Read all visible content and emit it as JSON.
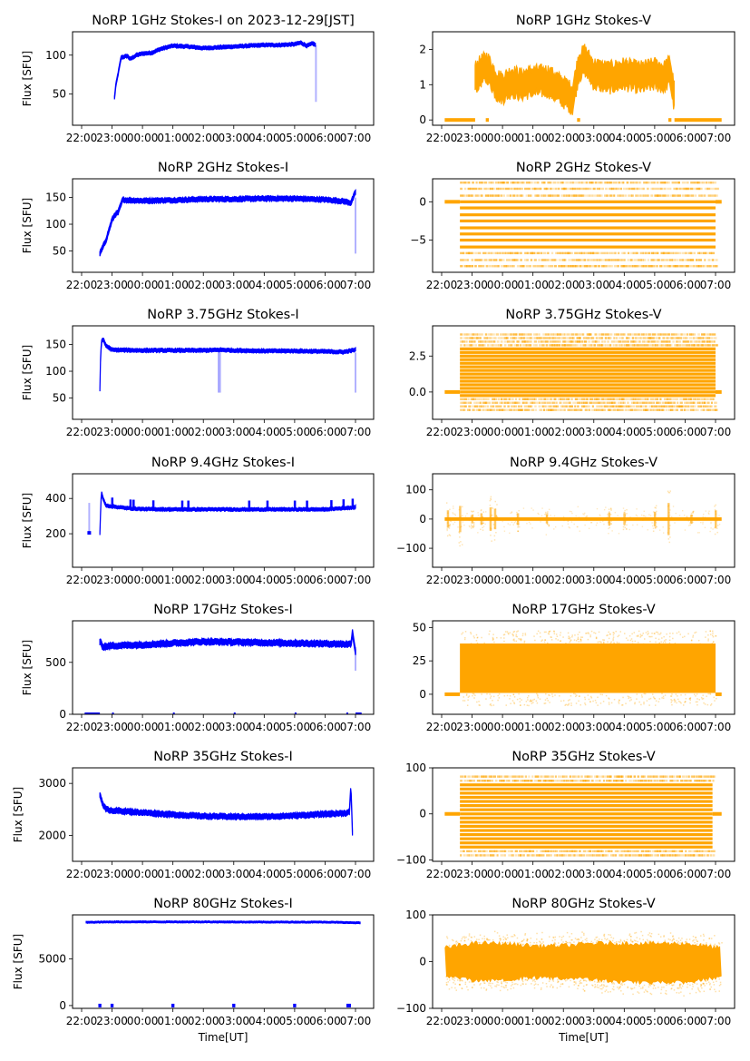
{
  "figure": {
    "xlabel": "Time[UT]",
    "ylabel": "Flux [SFU]",
    "x_ticks": [
      "22:00",
      "23:00",
      "00:00",
      "01:00",
      "02:00",
      "03:00",
      "04:00",
      "05:00",
      "06:00",
      "07:00"
    ],
    "colors": {
      "stokes_i": "#0000ff",
      "stokes_v": "#ffa500"
    }
  },
  "chart_data": [
    {
      "type": "scatter",
      "id": "1ghz-i",
      "title": "NoRP 1GHz Stokes-I on 2023-12-29[JST]",
      "xlabel": "",
      "ylabel": "Flux [SFU]",
      "color": "#0000ff",
      "xlim_hours": [
        21.7,
        31.5
      ],
      "ylim": [
        10,
        130
      ],
      "yticks": [
        50,
        100
      ],
      "ytick_labels": [
        "50",
        "100"
      ],
      "series": [
        {
          "name": "Stokes-I",
          "x_hours": [
            23.08,
            23.12,
            23.3,
            23.5,
            23.6,
            23.8,
            24.0,
            24.3,
            24.6,
            25.0,
            25.5,
            26.0,
            26.5,
            27.0,
            27.5,
            28.0,
            28.5,
            29.0,
            29.2,
            29.4,
            29.6,
            29.68
          ],
          "values": [
            45,
            60,
            97,
            99,
            95,
            100,
            102,
            103,
            108,
            112,
            111,
            109,
            110,
            111,
            112,
            113,
            113,
            114,
            116,
            112,
            115,
            113
          ],
          "band_halfwidth": 2,
          "dropouts": [
            {
              "x": 29.7,
              "low": 40,
              "high": 113
            }
          ]
        }
      ]
    },
    {
      "type": "scatter",
      "id": "1ghz-v",
      "title": "NoRP 1GHz Stokes-V",
      "xlabel": "",
      "ylabel": "",
      "color": "#ffa500",
      "xlim_hours": [
        21.7,
        31.5
      ],
      "ylim": [
        -0.15,
        2.5
      ],
      "yticks": [
        0,
        1,
        2
      ],
      "ytick_labels": [
        "0",
        "1",
        "2"
      ],
      "series": [
        {
          "name": "Stokes-V",
          "x_hours": [
            23.1,
            23.3,
            23.5,
            23.8,
            24.0,
            24.3,
            24.6,
            25.0,
            25.5,
            26.0,
            26.3,
            26.5,
            26.7,
            27.0,
            27.5,
            28.0,
            28.5,
            29.0,
            29.3,
            29.5,
            29.65
          ],
          "values": [
            1.2,
            1.4,
            1.5,
            1.0,
            0.9,
            1.1,
            1.0,
            1.1,
            1.1,
            0.8,
            0.6,
            1.5,
            1.7,
            1.3,
            1.2,
            1.3,
            1.2,
            1.3,
            1.2,
            1.4,
            0.6
          ],
          "band_halfwidth": 0.35,
          "zero_segments": [
            [
              22.1,
              23.1
            ],
            [
              23.45,
              23.55
            ],
            [
              26.45,
              26.55
            ],
            [
              29.45,
              29.55
            ],
            [
              29.65,
              31.2
            ]
          ]
        }
      ]
    },
    {
      "type": "scatter",
      "id": "2ghz-i",
      "title": "NoRP 2GHz Stokes-I",
      "xlabel": "",
      "ylabel": "Flux [SFU]",
      "color": "#0000ff",
      "xlim_hours": [
        21.7,
        31.5
      ],
      "ylim": [
        10,
        185
      ],
      "yticks": [
        50,
        100,
        150
      ],
      "ytick_labels": [
        "50",
        "100",
        "150"
      ],
      "series": [
        {
          "name": "Stokes-I",
          "x_hours": [
            22.6,
            22.8,
            23.0,
            23.1,
            23.2,
            23.35,
            23.5,
            24.0,
            25.0,
            26.0,
            27.0,
            28.0,
            29.0,
            30.0,
            30.6,
            30.85,
            31.0
          ],
          "values": [
            45,
            70,
            108,
            118,
            122,
            146,
            145,
            144,
            145,
            147,
            147,
            148,
            148,
            146,
            143,
            140,
            160
          ],
          "band_halfwidth": 4,
          "dropouts": [
            {
              "x": 31.0,
              "low": 45,
              "high": 150
            }
          ]
        }
      ]
    },
    {
      "type": "scatter",
      "id": "2ghz-v",
      "title": "NoRP 2GHz Stokes-V",
      "xlabel": "",
      "ylabel": "",
      "color": "#ffa500",
      "xlim_hours": [
        21.7,
        31.5
      ],
      "ylim": [
        -9.2,
        3.0
      ],
      "yticks": [
        -5,
        0
      ],
      "ytick_labels": [
        "−5",
        "0"
      ],
      "series": [
        {
          "name": "Stokes-V",
          "levels": [
            0,
            -0.8,
            -1.7,
            -2.5,
            -3.4,
            -4.2,
            -5.0,
            -5.9
          ],
          "sparse_levels": [
            2.5,
            1.7,
            0.8,
            -6.7,
            -7.6,
            -8.4
          ],
          "x_range": [
            22.6,
            31.0
          ],
          "zero_segments": [
            [
              22.1,
              22.6
            ],
            [
              31.0,
              31.2
            ]
          ]
        }
      ]
    },
    {
      "type": "scatter",
      "id": "375ghz-i",
      "title": "NoRP 3.75GHz Stokes-I",
      "xlabel": "",
      "ylabel": "Flux [SFU]",
      "color": "#0000ff",
      "xlim_hours": [
        21.7,
        31.5
      ],
      "ylim": [
        10,
        185
      ],
      "yticks": [
        50,
        100,
        150
      ],
      "ytick_labels": [
        "50",
        "100",
        "150"
      ],
      "series": [
        {
          "name": "Stokes-I",
          "x_hours": [
            22.6,
            22.62,
            22.65,
            22.7,
            22.8,
            23.0,
            24.0,
            25.0,
            26.0,
            26.6,
            27.0,
            28.0,
            29.0,
            30.0,
            30.6,
            31.0
          ],
          "values": [
            65,
            120,
            155,
            160,
            148,
            140,
            139,
            139,
            139,
            140,
            139,
            138,
            138,
            137,
            136,
            140
          ],
          "band_halfwidth": 3,
          "dropouts": [
            {
              "x": 26.5,
              "low": 60,
              "high": 135
            },
            {
              "x": 26.55,
              "low": 60,
              "high": 135
            },
            {
              "x": 31.0,
              "low": 60,
              "high": 135
            }
          ]
        }
      ]
    },
    {
      "type": "scatter",
      "id": "375ghz-v",
      "title": "NoRP 3.75GHz Stokes-V",
      "xlabel": "",
      "ylabel": "",
      "color": "#ffa500",
      "xlim_hours": [
        21.7,
        31.5
      ],
      "ylim": [
        -1.9,
        4.6
      ],
      "yticks": [
        0.0,
        2.5
      ],
      "ytick_labels": [
        "0.0",
        "2.5"
      ],
      "series": [
        {
          "name": "Stokes-V",
          "levels": [
            0,
            0.25,
            0.5,
            0.75,
            1.0,
            1.25,
            1.5,
            1.75,
            2.0,
            2.25,
            2.5,
            2.75,
            3.0,
            -0.25
          ],
          "sparse_levels": [
            3.25,
            3.5,
            3.75,
            4.0,
            -0.5,
            -0.75,
            -1.0,
            -1.25
          ],
          "x_range": [
            22.6,
            31.0
          ],
          "zero_segments": [
            [
              22.1,
              22.6
            ],
            [
              31.0,
              31.2
            ]
          ]
        }
      ]
    },
    {
      "type": "scatter",
      "id": "94ghz-i",
      "title": "NoRP 9.4GHz Stokes-I",
      "xlabel": "",
      "ylabel": "Flux [SFU]",
      "color": "#0000ff",
      "xlim_hours": [
        21.7,
        31.5
      ],
      "ylim": [
        10,
        540
      ],
      "yticks": [
        200,
        400
      ],
      "ytick_labels": [
        "200",
        "400"
      ],
      "series": [
        {
          "name": "Stokes-I",
          "x_hours": [
            22.6,
            22.62,
            22.65,
            22.7,
            22.8,
            23.0,
            23.5,
            24.0,
            25.0,
            26.0,
            27.0,
            28.0,
            29.0,
            30.0,
            31.0
          ],
          "values": [
            200,
            310,
            440,
            400,
            360,
            355,
            345,
            340,
            338,
            338,
            338,
            338,
            338,
            338,
            350
          ],
          "band_halfwidth": 8,
          "spikes_hours": [
            23.0,
            23.6,
            23.7,
            24.35,
            25.3,
            25.5,
            27.5,
            28.1,
            29.0,
            29.4,
            30.2,
            30.6,
            30.9
          ],
          "early_points": [
            {
              "x": 22.25,
              "low": 195,
              "high": 375
            }
          ]
        }
      ]
    },
    {
      "type": "scatter",
      "id": "94ghz-v",
      "title": "NoRP 9.4GHz Stokes-V",
      "xlabel": "",
      "ylabel": "",
      "color": "#ffa500",
      "xlim_hours": [
        21.7,
        31.5
      ],
      "ylim": [
        -165,
        155
      ],
      "yticks": [
        -100,
        0,
        100
      ],
      "ytick_labels": [
        "−100",
        "0",
        "100"
      ],
      "series": [
        {
          "name": "Stokes-V",
          "x_range": [
            22.1,
            31.2
          ],
          "center": 0,
          "band_halfwidth": 6,
          "spikes_hours": [
            22.2,
            22.6,
            23.0,
            23.3,
            23.6,
            23.75,
            24.5,
            25.45,
            27.5,
            28.0,
            29.0,
            29.45,
            30.2,
            31.0
          ],
          "spike_amplitudes": [
            60,
            90,
            30,
            40,
            80,
            70,
            40,
            30,
            45,
            40,
            50,
            110,
            30,
            60
          ]
        }
      ]
    },
    {
      "type": "scatter",
      "id": "17ghz-i",
      "title": "NoRP 17GHz Stokes-I",
      "xlabel": "",
      "ylabel": "Flux [SFU]",
      "color": "#0000ff",
      "xlim_hours": [
        21.7,
        31.5
      ],
      "ylim": [
        0,
        900
      ],
      "yticks": [
        0,
        500
      ],
      "ytick_labels": [
        "0",
        "500"
      ],
      "series": [
        {
          "name": "Stokes-I",
          "x_hours": [
            22.6,
            22.7,
            23.0,
            24.0,
            25.0,
            26.0,
            27.0,
            28.0,
            29.0,
            30.0,
            30.85,
            30.9,
            31.0
          ],
          "values": [
            700,
            650,
            660,
            670,
            685,
            700,
            695,
            690,
            685,
            680,
            675,
            790,
            600
          ],
          "band_halfwidth": 25,
          "dropouts": [
            {
              "x": 31.0,
              "low": 420,
              "high": 650
            }
          ],
          "zero_segments": [
            [
              22.1,
              22.6
            ],
            [
              23.0,
              23.02
            ],
            [
              25.0,
              25.03
            ],
            [
              27.0,
              27.03
            ],
            [
              29.0,
              29.03
            ],
            [
              30.7,
              30.75
            ],
            [
              31.0,
              31.2
            ]
          ]
        }
      ]
    },
    {
      "type": "scatter",
      "id": "17ghz-v",
      "title": "NoRP 17GHz Stokes-V",
      "xlabel": "",
      "ylabel": "",
      "color": "#ffa500",
      "xlim_hours": [
        21.7,
        31.5
      ],
      "ylim": [
        -15,
        55
      ],
      "yticks": [
        0,
        25,
        50
      ],
      "ytick_labels": [
        "0",
        "25",
        "50"
      ],
      "series": [
        {
          "name": "Stokes-V",
          "x_range": [
            22.6,
            31.0
          ],
          "low": 1,
          "high": 38,
          "scatter_low": -8,
          "scatter_high": 48,
          "zero_segments": [
            [
              22.1,
              22.6
            ],
            [
              31.0,
              31.2
            ]
          ]
        }
      ]
    },
    {
      "type": "scatter",
      "id": "35ghz-i",
      "title": "NoRP 35GHz Stokes-I",
      "xlabel": "",
      "ylabel": "Flux [SFU]",
      "color": "#0000ff",
      "xlim_hours": [
        21.7,
        31.5
      ],
      "ylim": [
        1500,
        3300
      ],
      "yticks": [
        2000,
        3000
      ],
      "ytick_labels": [
        "2000",
        "3000"
      ],
      "series": [
        {
          "name": "Stokes-I",
          "x_hours": [
            22.6,
            22.7,
            22.8,
            23.0,
            24.0,
            25.0,
            26.0,
            27.0,
            28.0,
            29.0,
            30.0,
            30.7,
            30.8,
            30.85,
            30.9
          ],
          "values": [
            2780,
            2600,
            2500,
            2480,
            2440,
            2400,
            2370,
            2360,
            2360,
            2380,
            2410,
            2430,
            2450,
            2950,
            2050
          ],
          "band_halfwidth": 45
        }
      ]
    },
    {
      "type": "scatter",
      "id": "35ghz-v",
      "title": "NoRP 35GHz Stokes-V",
      "xlabel": "",
      "ylabel": "",
      "color": "#ffa500",
      "xlim_hours": [
        21.7,
        31.5
      ],
      "ylim": [
        -103,
        100
      ],
      "yticks": [
        -100,
        0,
        100
      ],
      "ytick_labels": [
        "−100",
        "0",
        "100"
      ],
      "series": [
        {
          "name": "Stokes-V",
          "levels": [
            0,
            9,
            18,
            27,
            36,
            45,
            54,
            63,
            -9,
            -18,
            -27,
            -36,
            -45,
            -54,
            -63,
            -72
          ],
          "sparse_levels": [
            72,
            81,
            -81,
            -90
          ],
          "x_range": [
            22.6,
            30.9
          ],
          "zero_segments": [
            [
              22.1,
              22.6
            ],
            [
              30.9,
              31.2
            ]
          ]
        }
      ]
    },
    {
      "type": "scatter",
      "id": "80ghz-i",
      "title": "NoRP 80GHz Stokes-I",
      "xlabel": "Time[UT]",
      "ylabel": "Flux [SFU]",
      "color": "#0000ff",
      "xlim_hours": [
        21.7,
        31.5
      ],
      "ylim": [
        -300,
        9700
      ],
      "yticks": [
        0,
        5000
      ],
      "ytick_labels": [
        "0",
        "5000"
      ],
      "series": [
        {
          "name": "Stokes-I",
          "x_hours": [
            22.15,
            23.0,
            24.0,
            26.0,
            28.0,
            30.0,
            31.15
          ],
          "values": [
            8900,
            8950,
            8950,
            8950,
            8930,
            8930,
            8850
          ],
          "band_halfwidth": 80,
          "zero_segments": [
            [
              22.55,
              22.65
            ],
            [
              22.95,
              23.05
            ],
            [
              24.95,
              25.05
            ],
            [
              26.95,
              27.05
            ],
            [
              28.95,
              29.05
            ],
            [
              30.7,
              30.85
            ]
          ]
        }
      ]
    },
    {
      "type": "scatter",
      "id": "80ghz-v",
      "title": "NoRP 80GHz Stokes-V",
      "xlabel": "Time[UT]",
      "ylabel": "",
      "color": "#ffa500",
      "xlim_hours": [
        21.7,
        31.5
      ],
      "ylim": [
        -100,
        100
      ],
      "yticks": [
        -100,
        0,
        100
      ],
      "ytick_labels": [
        "−100",
        "0",
        "100"
      ],
      "series": [
        {
          "name": "Stokes-V",
          "x_range": [
            22.1,
            31.2
          ],
          "x_hours": [
            22.1,
            23.0,
            24.0,
            25.0,
            26.0,
            27.0,
            28.0,
            29.0,
            30.0,
            31.2
          ],
          "low": [
            -30,
            -40,
            -40,
            -35,
            -35,
            -40,
            -45,
            -45,
            -45,
            -35
          ],
          "high": [
            30,
            40,
            40,
            35,
            35,
            40,
            40,
            40,
            40,
            30
          ],
          "scatter_spread": 20
        }
      ]
    }
  ]
}
